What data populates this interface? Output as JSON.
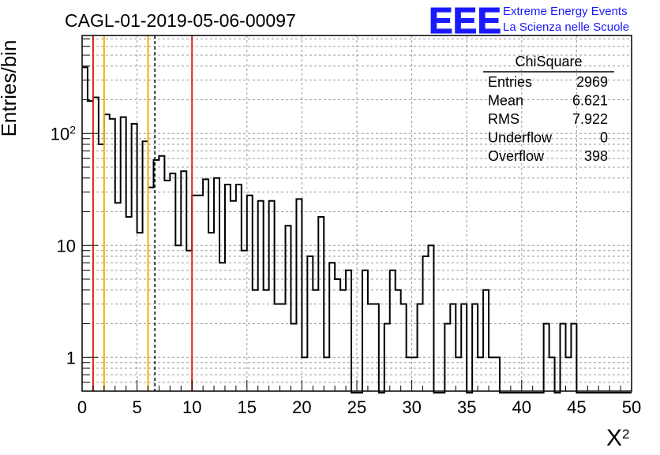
{
  "chart_data": {
    "type": "histogram",
    "title": "CAGL-01-2019-05-06-00097",
    "xlabel": "X",
    "xlabel_superscript": "2",
    "ylabel": "Entries/bin",
    "xlim": [
      0,
      50
    ],
    "ylim": [
      0.5,
      750
    ],
    "yscale": "log",
    "grid": true,
    "bin_width": 0.5,
    "x_ticks": [
      "0",
      "5",
      "10",
      "15",
      "20",
      "25",
      "30",
      "35",
      "40",
      "45",
      "50"
    ],
    "y_ticks": [
      {
        "label": "1",
        "exp": ""
      },
      {
        "label": "10",
        "exp": ""
      },
      {
        "label": "10",
        "exp": "2"
      }
    ],
    "bin_counts": [
      390,
      195,
      210,
      80,
      148,
      135,
      24,
      140,
      18,
      122,
      13,
      85,
      33,
      58,
      63,
      38,
      44,
      10,
      46,
      9,
      28,
      28,
      39,
      13,
      40,
      7,
      35,
      25,
      35,
      9,
      28,
      4,
      25,
      4,
      25,
      3,
      3,
      15,
      2,
      26,
      1,
      8,
      4,
      18,
      1,
      7,
      5,
      4,
      6,
      0,
      0,
      6,
      3,
      3,
      0,
      2,
      6,
      4,
      3,
      1,
      1,
      3,
      8,
      10,
      0,
      0,
      2,
      3,
      1,
      3,
      0,
      3,
      1,
      4,
      1,
      1,
      0,
      0,
      0,
      0,
      0,
      0,
      0,
      0,
      2,
      1,
      0,
      2,
      1,
      2,
      0,
      0,
      0,
      0,
      0,
      0,
      0,
      0,
      0,
      0
    ],
    "vertical_lines": [
      {
        "x": 1,
        "color": "#e2231a",
        "style": "solid"
      },
      {
        "x": 2,
        "color": "#f0b400",
        "style": "solid"
      },
      {
        "x": 6,
        "color": "#f0b400",
        "style": "solid"
      },
      {
        "x": 6.621,
        "color": "#000000",
        "style": "dashed"
      },
      {
        "x": 10,
        "color": "#e2231a",
        "style": "solid"
      }
    ],
    "stats_box": {
      "title": "ChiSquare",
      "rows": [
        {
          "label": "Entries",
          "value": "2969"
        },
        {
          "label": "Mean",
          "value": "6.621"
        },
        {
          "label": "RMS",
          "value": "7.922"
        },
        {
          "label": "Underflow",
          "value": "0"
        },
        {
          "label": "Overflow",
          "value": "398"
        }
      ]
    }
  },
  "logo": {
    "text": "EEE",
    "line1": "Extreme Energy Events",
    "line2": "La Scienza nelle Scuole",
    "color": "#1a1aff"
  }
}
